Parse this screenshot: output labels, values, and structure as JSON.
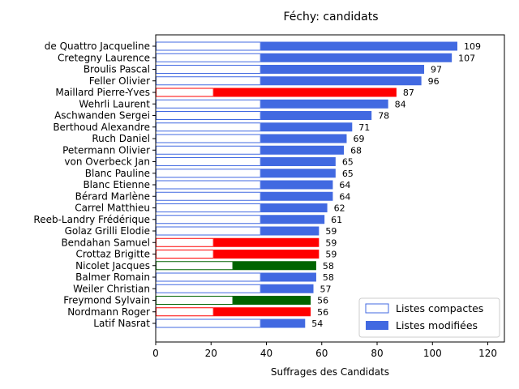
{
  "chart_data": {
    "type": "bar",
    "orientation": "horizontal",
    "title": "Féchy: candidats",
    "xlabel": "Suffrages des Candidats",
    "ylabel": "",
    "xlim": [
      0,
      126
    ],
    "xticks": [
      0,
      20,
      40,
      60,
      80,
      100,
      120
    ],
    "legend": {
      "placement": "lower-right",
      "entries": [
        {
          "label": "Listes compactes",
          "style": "outline"
        },
        {
          "label": "Listes modifiées",
          "style": "filled"
        }
      ]
    },
    "colors": {
      "blue": "#4169e1",
      "red": "#ff0000",
      "green": "#006400"
    },
    "categories": [
      "de Quattro Jacqueline",
      "Cretegny Laurence",
      "Broulis Pascal",
      "Feller Olivier",
      "Maillard Pierre-Yves",
      "Wehrli Laurent",
      "Aschwanden Sergei",
      "Berthoud Alexandre",
      "Ruch Daniel",
      "Petermann Olivier",
      "von Overbeck Jan",
      "Blanc Pauline",
      "Blanc Etienne",
      "Bérard Marlène",
      "Carrel Matthieu",
      "Reeb-Landry Frédérique",
      "Golaz Grilli Elodie",
      "Bendahan Samuel",
      "Crottaz Brigitte",
      "Nicolet Jacques",
      "Balmer Romain",
      "Weiler Christian",
      "Freymond Sylvain",
      "Nordmann Roger",
      "Latif Nasrat"
    ],
    "totals": [
      109,
      107,
      97,
      96,
      87,
      84,
      78,
      71,
      69,
      68,
      65,
      65,
      64,
      64,
      62,
      61,
      59,
      59,
      59,
      58,
      58,
      57,
      56,
      56,
      54
    ],
    "compact": [
      38,
      38,
      38,
      38,
      21,
      38,
      38,
      38,
      38,
      38,
      38,
      38,
      38,
      38,
      38,
      38,
      38,
      21,
      21,
      28,
      38,
      38,
      28,
      21,
      38
    ],
    "party_colors": [
      "blue",
      "blue",
      "blue",
      "blue",
      "red",
      "blue",
      "blue",
      "blue",
      "blue",
      "blue",
      "blue",
      "blue",
      "blue",
      "blue",
      "blue",
      "blue",
      "blue",
      "red",
      "red",
      "green",
      "blue",
      "blue",
      "green",
      "red",
      "blue"
    ]
  }
}
